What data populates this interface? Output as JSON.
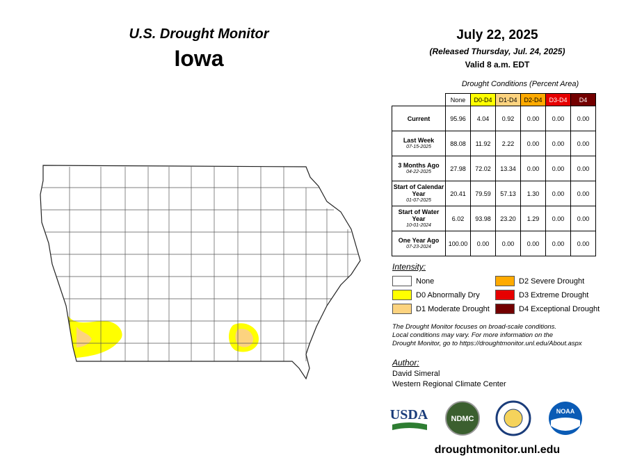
{
  "header": {
    "title": "U.S. Drought Monitor",
    "state": "Iowa"
  },
  "date": {
    "date": "July 22, 2025",
    "released": "(Released Thursday, Jul. 24, 2025)",
    "valid": "Valid 8 a.m. EDT"
  },
  "table": {
    "caption": "Drought Conditions (Percent Area)",
    "columns": [
      {
        "label": "None",
        "color": "#ffffff",
        "text": "#000000"
      },
      {
        "label": "D0-D4",
        "color": "#ffff00",
        "text": "#000000"
      },
      {
        "label": "D1-D4",
        "color": "#fcd37f",
        "text": "#000000"
      },
      {
        "label": "D2-D4",
        "color": "#ffaa00",
        "text": "#000000"
      },
      {
        "label": "D3-D4",
        "color": "#e60000",
        "text": "#ffffff"
      },
      {
        "label": "D4",
        "color": "#730000",
        "text": "#ffffff"
      }
    ],
    "rows": [
      {
        "label": "Current",
        "values": [
          "95.96",
          "4.04",
          "0.92",
          "0.00",
          "0.00",
          "0.00"
        ]
      },
      {
        "label": "Last Week",
        "date": "07-15-2025",
        "values": [
          "88.08",
          "11.92",
          "2.22",
          "0.00",
          "0.00",
          "0.00"
        ]
      },
      {
        "label": "3 Months Ago",
        "date": "04-22-2025",
        "values": [
          "27.98",
          "72.02",
          "13.34",
          "0.00",
          "0.00",
          "0.00"
        ]
      },
      {
        "label": "Start of Calendar Year",
        "date": "01-07-2025",
        "values": [
          "20.41",
          "79.59",
          "57.13",
          "1.30",
          "0.00",
          "0.00"
        ]
      },
      {
        "label": "Start of Water Year",
        "date": "10-01-2024",
        "values": [
          "6.02",
          "93.98",
          "23.20",
          "1.29",
          "0.00",
          "0.00"
        ]
      },
      {
        "label": "One Year Ago",
        "date": "07-23-2024",
        "values": [
          "100.00",
          "0.00",
          "0.00",
          "0.00",
          "0.00",
          "0.00"
        ]
      }
    ]
  },
  "legend": {
    "title": "Intensity:",
    "items": [
      {
        "label": "None",
        "color": "#ffffff"
      },
      {
        "label": "D0 Abnormally Dry",
        "color": "#ffff00"
      },
      {
        "label": "D1 Moderate Drought",
        "color": "#fcd37f"
      },
      {
        "label": "D2 Severe Drought",
        "color": "#ffaa00"
      },
      {
        "label": "D3 Extreme Drought",
        "color": "#e60000"
      },
      {
        "label": "D4 Exceptional Drought",
        "color": "#730000"
      }
    ]
  },
  "note": [
    "The Drought Monitor focuses on broad-scale conditions.",
    "Local conditions may vary. For more information on the",
    "Drought Monitor, go to https://droughtmonitor.unl.edu/About.aspx"
  ],
  "author": {
    "title": "Author:",
    "names": [
      "David Simeral",
      "Western Regional Climate Center"
    ]
  },
  "logos": {
    "usda": "USDA",
    "ndmc": "NDMC",
    "noaa": "NOAA"
  },
  "footer": "droughtmonitor.unl.edu"
}
